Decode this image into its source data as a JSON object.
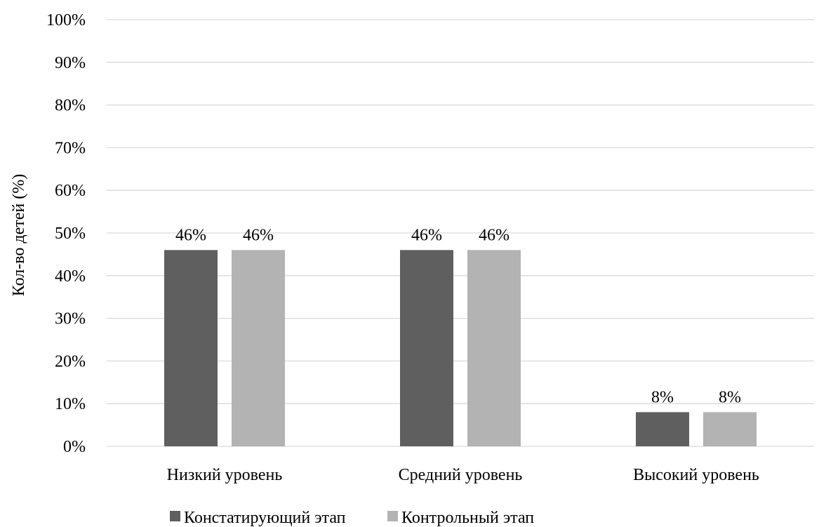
{
  "chart_data": {
    "type": "bar",
    "title": "",
    "xlabel": "",
    "ylabel": "Кол-во детей (%)",
    "ylim": [
      0,
      100
    ],
    "yticks": [
      0,
      10,
      20,
      30,
      40,
      50,
      60,
      70,
      80,
      90,
      100
    ],
    "ytick_suffix": "%",
    "grid": true,
    "legend_position": "bottom",
    "categories": [
      "Низкий уровень",
      "Средний уровень",
      "Высокий уровень"
    ],
    "series": [
      {
        "name": "Констатирующий этап",
        "values": [
          46,
          46,
          8
        ],
        "color": "#5f5f5f"
      },
      {
        "name": "Контрольный этап",
        "values": [
          46,
          46,
          8
        ],
        "color": "#b3b3b3"
      }
    ]
  }
}
